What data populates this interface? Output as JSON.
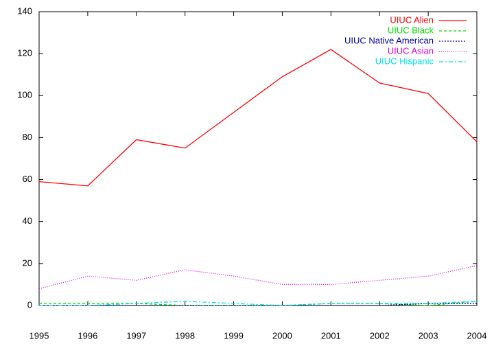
{
  "chart_data": {
    "type": "line",
    "x": [
      1995,
      1996,
      1997,
      1998,
      1999,
      2000,
      2001,
      2002,
      2003,
      2004
    ],
    "series": [
      {
        "name": "UIUC Alien",
        "color": "#ff0000",
        "dash": "none",
        "values": [
          59,
          57,
          79,
          75,
          92,
          109,
          122,
          106,
          101,
          78
        ]
      },
      {
        "name": "UIUC Black",
        "color": "#00e000",
        "dash": "4,3",
        "values": [
          1,
          1,
          1,
          0,
          0,
          0,
          1,
          1,
          0,
          2
        ]
      },
      {
        "name": "UIUC Native American",
        "color": "#0000a0",
        "dash": "2,2",
        "values": [
          0,
          0,
          0,
          0,
          0,
          0,
          0,
          0,
          1,
          1
        ]
      },
      {
        "name": "UIUC Asian",
        "color": "#e000e0",
        "dash": "1,2",
        "values": [
          8,
          14,
          12,
          17,
          14,
          10,
          10,
          12,
          14,
          19
        ]
      },
      {
        "name": "UIUC Hispanic",
        "color": "#00e0e0",
        "dash": "6,3,2,3",
        "values": [
          0,
          0,
          1,
          2,
          1,
          0,
          1,
          1,
          1,
          2
        ]
      }
    ],
    "xlim": [
      1995,
      2004
    ],
    "xticks": [
      1995,
      1996,
      1997,
      1998,
      1999,
      2000,
      2001,
      2002,
      2003,
      2004
    ],
    "ylim": [
      0,
      140
    ],
    "yticks": [
      0,
      20,
      40,
      60,
      80,
      100,
      120,
      140
    ],
    "legend": "top-right",
    "grid": false
  }
}
